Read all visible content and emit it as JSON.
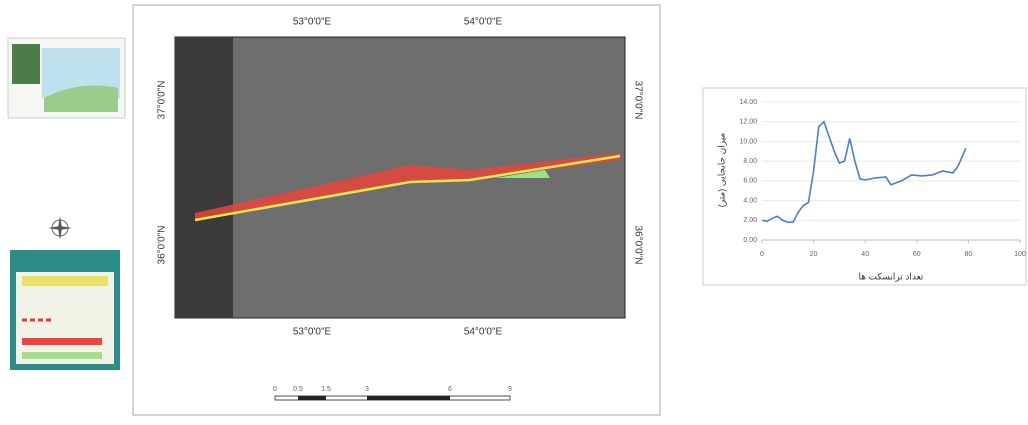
{
  "map": {
    "lon_labels": [
      "53°0'0\"E",
      "54°0'0\"E"
    ],
    "lat_labels": [
      "37°0'0\"N",
      "36°0'0\"N"
    ],
    "scale_labels": [
      "0",
      "0.5",
      "1.5",
      "3",
      "6",
      "9"
    ]
  },
  "chart_data": {
    "type": "line",
    "x_label": "تعداد ترانسکت ها",
    "y_label": "میزان جابجایی (متر)",
    "x": [
      0,
      2,
      4,
      6,
      8,
      10,
      12,
      14,
      16,
      18,
      20,
      22,
      24,
      26,
      28,
      30,
      32,
      34,
      36,
      38,
      40,
      44,
      48,
      50,
      54,
      58,
      62,
      66,
      70,
      74,
      76,
      79
    ],
    "values": [
      2.0,
      1.9,
      2.2,
      2.4,
      2.0,
      1.8,
      1.8,
      2.8,
      3.5,
      3.8,
      7.0,
      11.5,
      12.0,
      10.5,
      9.0,
      7.8,
      8.0,
      10.3,
      8.0,
      6.2,
      6.1,
      6.3,
      6.4,
      5.6,
      6.0,
      6.6,
      6.5,
      6.6,
      7.0,
      6.8,
      7.5,
      9.3
    ],
    "color": "#4a7fc9",
    "xlim": [
      0,
      100
    ],
    "xticks": [
      0,
      20,
      40,
      60,
      80,
      100
    ],
    "ylim": [
      0,
      14
    ],
    "yticks": [
      {
        "value": 0,
        "label": "0.00"
      },
      {
        "value": 2,
        "label": "2.00"
      },
      {
        "value": 4,
        "label": "4.00"
      },
      {
        "value": 6,
        "label": "6.00"
      },
      {
        "value": 8,
        "label": "8.00"
      },
      {
        "value": 10,
        "label": "10.00"
      },
      {
        "value": 12,
        "label": "12.00"
      },
      {
        "value": 14,
        "label": "14.00"
      }
    ],
    "grid": true
  }
}
